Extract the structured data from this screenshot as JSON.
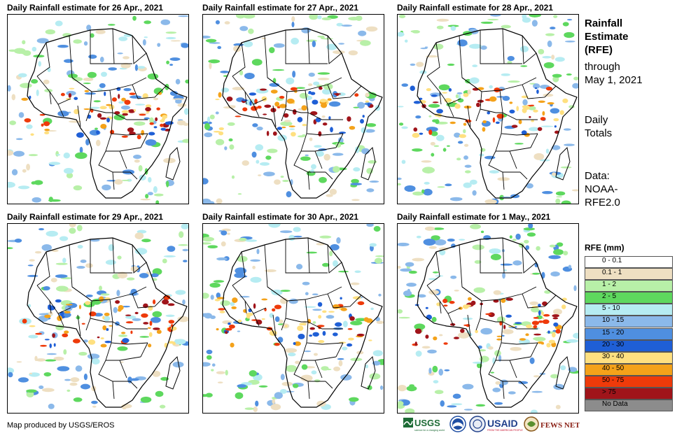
{
  "panels": [
    {
      "title": "Daily Rainfall estimate for 26 Apr., 2021"
    },
    {
      "title": "Daily Rainfall estimate for 27 Apr., 2021"
    },
    {
      "title": "Daily Rainfall estimate for 28 Apr., 2021"
    },
    {
      "title": "Daily Rainfall estimate for 29 Apr., 2021"
    },
    {
      "title": "Daily Rainfall estimate for 30 Apr., 2021"
    },
    {
      "title": "Daily Rainfall estimate for 1 May., 2021"
    }
  ],
  "sidebar": {
    "title_lines": [
      "Rainfall",
      "Estimate",
      "(RFE)"
    ],
    "through_lines": [
      "through",
      "May 1, 2021"
    ],
    "totals_lines": [
      "Daily",
      "Totals"
    ],
    "data_lines": [
      "Data:",
      "NOAA-",
      "RFE2.0"
    ]
  },
  "legend": {
    "title": "RFE (mm)",
    "items": [
      {
        "label": "0 - 0.1",
        "color": "#ffffff"
      },
      {
        "label": "0.1 - 1",
        "color": "#eedfc2"
      },
      {
        "label": "1 - 2",
        "color": "#b8f0a8"
      },
      {
        "label": "2 - 5",
        "color": "#5ed85e"
      },
      {
        "label": "5 - 10",
        "color": "#b6ecf2"
      },
      {
        "label": "10 - 15",
        "color": "#8bb9ea"
      },
      {
        "label": "15 - 20",
        "color": "#4f8fe0"
      },
      {
        "label": "20 - 30",
        "color": "#1f5fd6"
      },
      {
        "label": "30 - 40",
        "color": "#ffe080"
      },
      {
        "label": "40 - 50",
        "color": "#f4a21a"
      },
      {
        "label": "50 - 75",
        "color": "#ee3a0a"
      },
      {
        "label": "> 75",
        "color": "#a0141a"
      },
      {
        "label": "No Data",
        "color": "#8c8c8c"
      }
    ]
  },
  "credit": "Map produced by USGS/EROS",
  "logos": [
    {
      "name": "usgs-logo",
      "text": "USGS",
      "sub": "science for a changing world"
    },
    {
      "name": "noaa-logo",
      "text": "NOAA"
    },
    {
      "name": "usaid-seal-logo",
      "text": ""
    },
    {
      "name": "usaid-logo",
      "text": "USAID",
      "sub": "FROM THE AMERICAN PEOPLE"
    },
    {
      "name": "fews-net-logo",
      "text": "FEWS NET"
    }
  ]
}
